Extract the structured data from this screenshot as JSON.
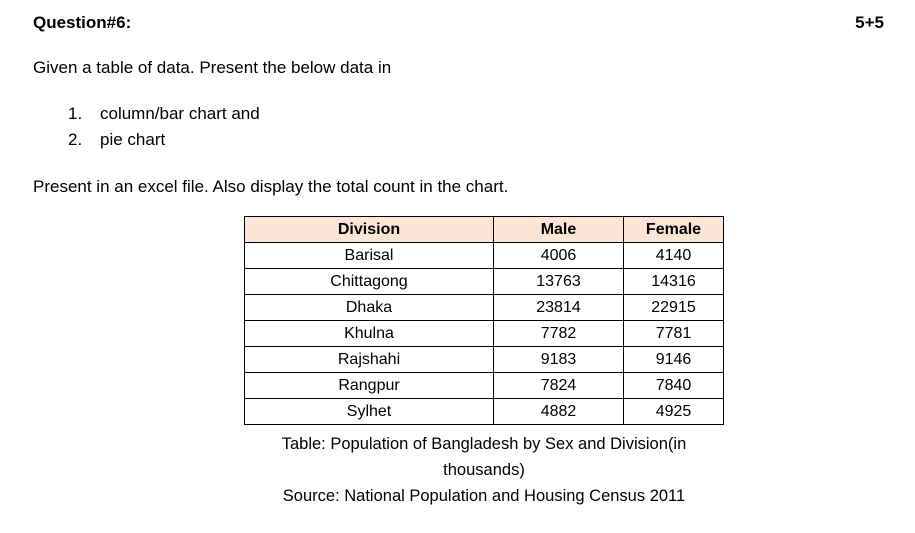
{
  "document": {
    "question_label": "Question#6:",
    "marks": "5+5",
    "intro": "Given a table of data. Present the below data in",
    "list": [
      {
        "number": "1.",
        "text": "column/bar chart and"
      },
      {
        "number": "2.",
        "text": "pie chart"
      }
    ],
    "instruction": "Present in an excel file. Also display the total count in the chart.",
    "caption": "Table: Population of Bangladesh by Sex and Division(in thousands)",
    "source": "Source: National Population and Housing Census 2011"
  },
  "table": {
    "headers": [
      "Division",
      "Male",
      "Female"
    ],
    "rows": [
      [
        "Barisal",
        "4006",
        "4140"
      ],
      [
        "Chittagong",
        "13763",
        "14316"
      ],
      [
        "Dhaka",
        "23814",
        "22915"
      ],
      [
        "Khulna",
        "7782",
        "7781"
      ],
      [
        "Rajshahi",
        "9183",
        "9146"
      ],
      [
        "Rangpur",
        "7824",
        "7840"
      ],
      [
        "Sylhet",
        "4882",
        "4925"
      ]
    ],
    "header_fill": "#fce4d6",
    "border_color": "#000000"
  },
  "chart_data": {
    "type": "table",
    "title": "Population of Bangladesh by Sex and Division (in thousands)",
    "categories": [
      "Barisal",
      "Chittagong",
      "Dhaka",
      "Khulna",
      "Rajshahi",
      "Rangpur",
      "Sylhet"
    ],
    "series": [
      {
        "name": "Male",
        "values": [
          4006,
          13763,
          23814,
          7782,
          9183,
          7824,
          4882
        ]
      },
      {
        "name": "Female",
        "values": [
          4140,
          14316,
          22915,
          7781,
          9146,
          7840,
          4925
        ]
      }
    ],
    "source": "National Population and Housing Census 2011"
  }
}
